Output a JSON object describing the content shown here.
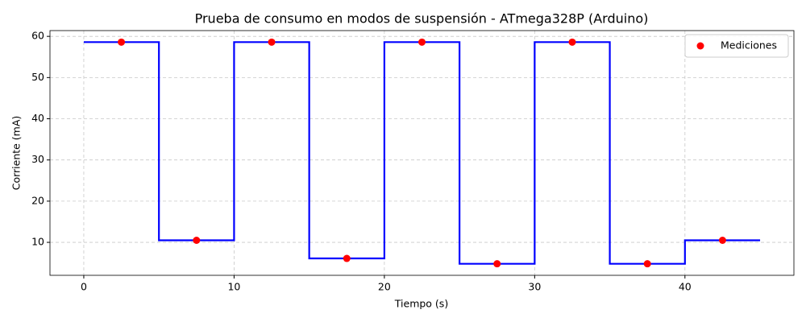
{
  "chart_data": {
    "type": "line",
    "title": "Prueba de consumo en modos de suspensión - ATmega328P (Arduino)",
    "x_label": "Tiempo (s)",
    "y_label": "Corriente (mA)",
    "series": [
      {
        "type": "step",
        "color": "#0000ff",
        "x": [
          0,
          5,
          10,
          15,
          20,
          25,
          30,
          35,
          40,
          45
        ],
        "values": [
          58.6,
          10.5,
          58.6,
          6.1,
          58.6,
          4.8,
          58.6,
          4.8,
          10.5,
          10.5
        ]
      },
      {
        "type": "scatter",
        "name": "Mediciones",
        "color": "#ff0000",
        "x": [
          2.5,
          7.5,
          12.5,
          17.5,
          22.5,
          27.5,
          32.5,
          37.5,
          42.5
        ],
        "values": [
          58.6,
          10.5,
          58.6,
          6.1,
          58.6,
          4.8,
          58.6,
          4.8,
          10.5
        ]
      }
    ],
    "xlim": [
      -2.25,
      47.25
    ],
    "xticks": [
      0,
      10,
      20,
      30,
      40
    ],
    "ylim": [
      2.0,
      61.4
    ],
    "yticks": [
      10,
      20,
      30,
      40,
      50,
      60
    ],
    "grid": true,
    "legend": "upper-right"
  }
}
